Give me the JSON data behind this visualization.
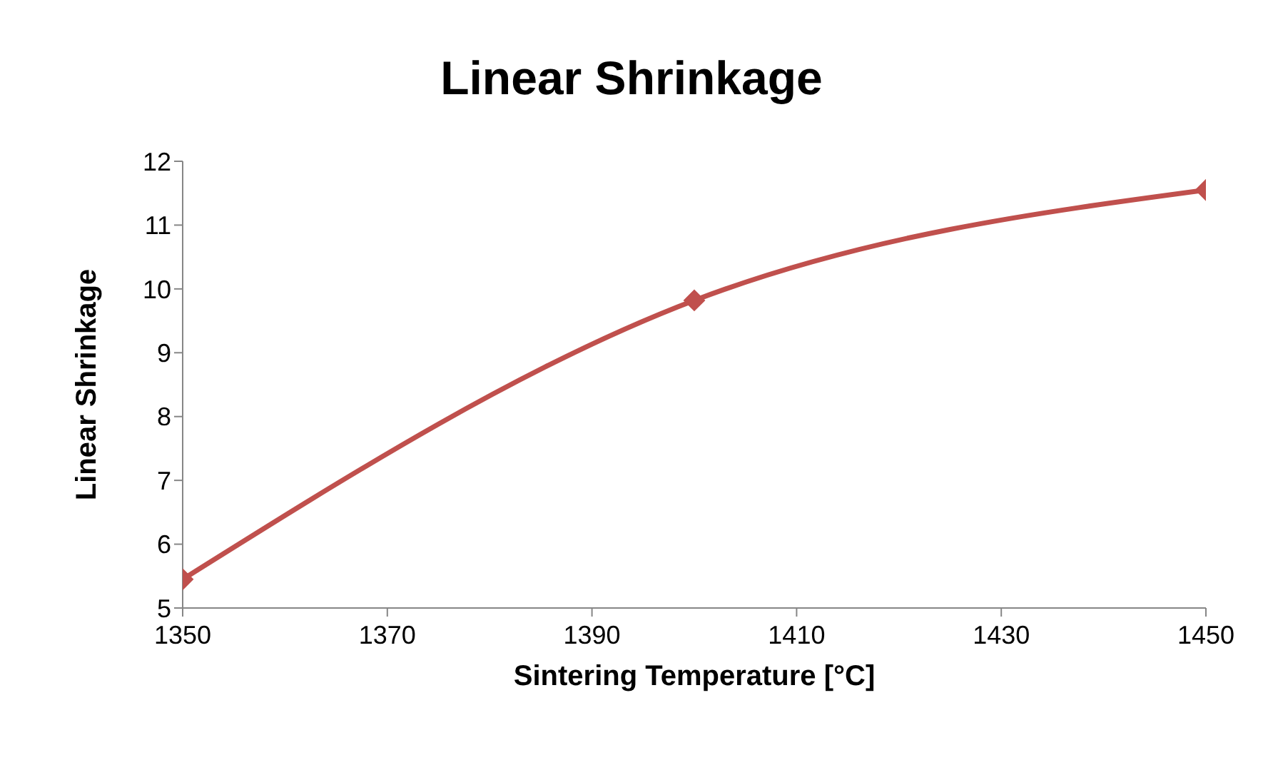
{
  "chart_data": {
    "type": "line",
    "title": "Linear Shrinkage",
    "xlabel": "Sintering Temperature [°C]",
    "ylabel": "Linear Shrinkage",
    "x": [
      1350,
      1400,
      1450
    ],
    "series": [
      {
        "color": "#c0504d",
        "values": [
          5.45,
          9.82,
          11.55
        ]
      }
    ],
    "xlim": [
      1350,
      1450
    ],
    "xticks": [
      1350,
      1370,
      1390,
      1410,
      1430,
      1450
    ],
    "ylim": [
      5,
      12
    ],
    "yticks": [
      5,
      6,
      7,
      8,
      9,
      10,
      11,
      12
    ],
    "grid": false,
    "legend": false,
    "marker": "diamond",
    "line_style": "solid"
  }
}
